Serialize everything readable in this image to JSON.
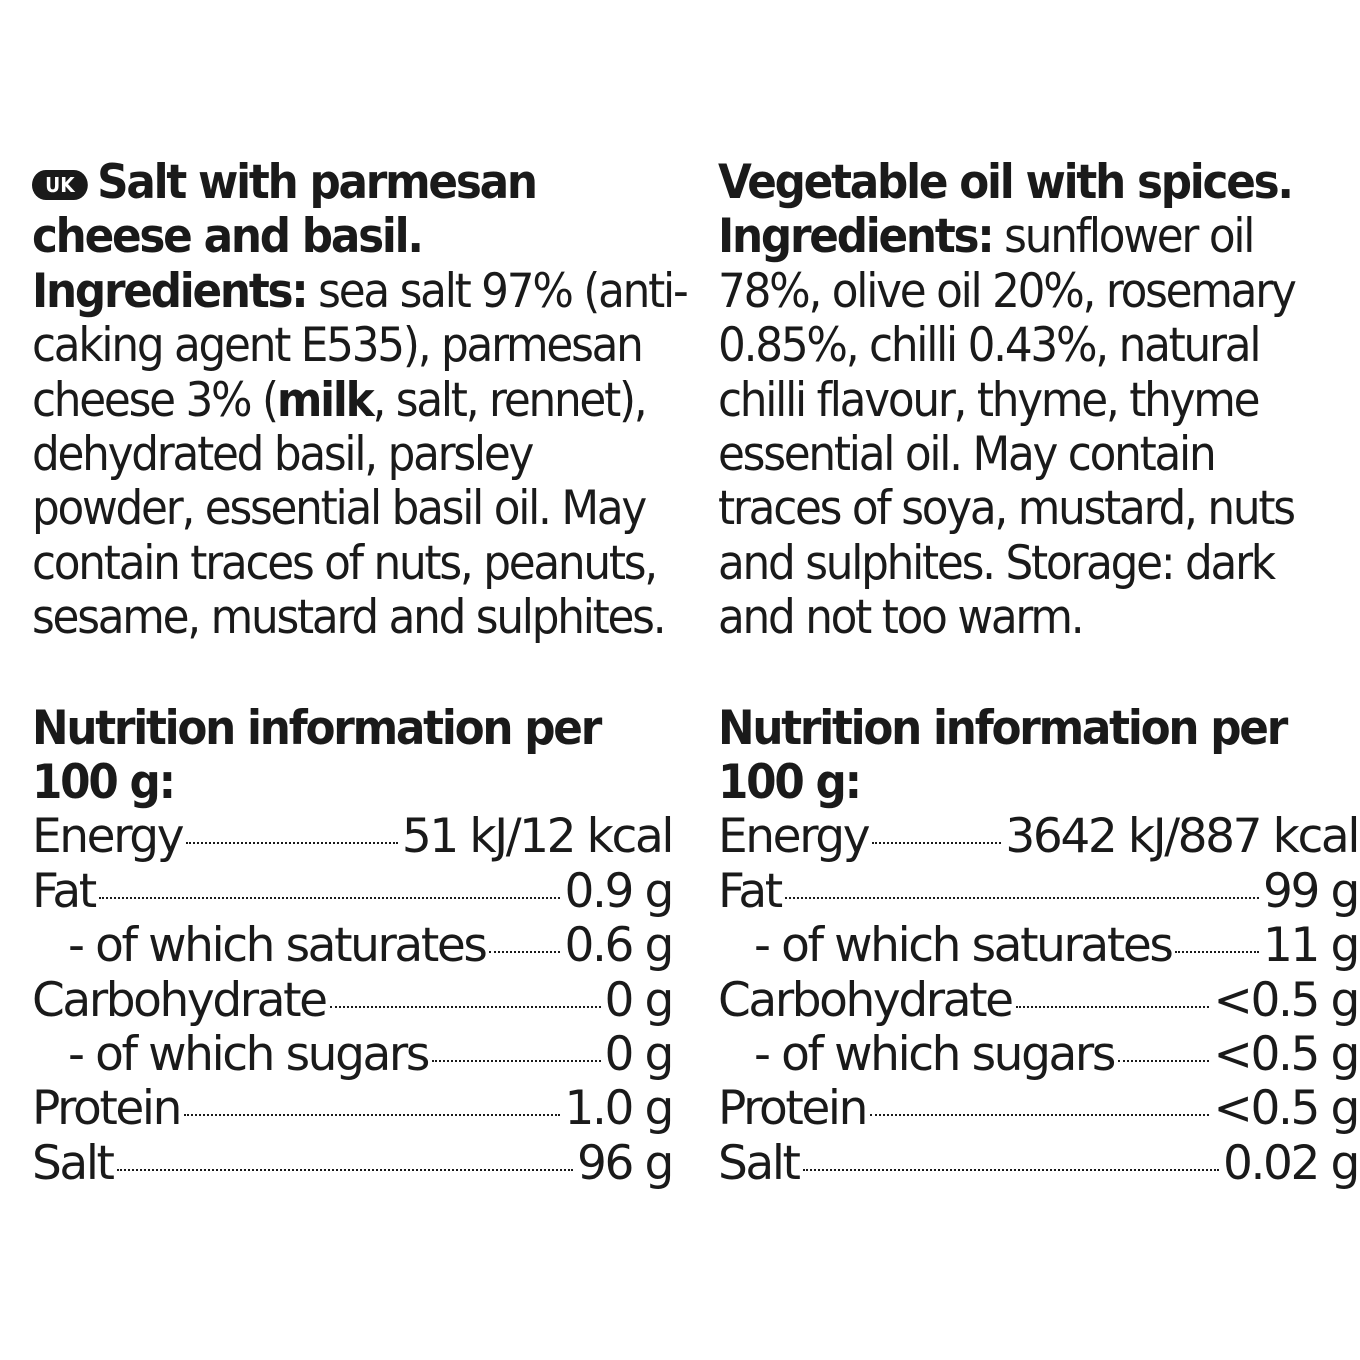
{
  "badge": "UK",
  "left": {
    "title_lines": [
      "Salt with parmesan",
      "cheese and basil."
    ],
    "ingredients_label": "Ingredients:",
    "ingredients_first": " sea salt 97% (anti-",
    "ingredients_lines": [
      "caking agent E535), parmesan"
    ],
    "cheese_line_pre": "cheese 3% (",
    "cheese_line_bold": "milk",
    "cheese_line_post": ", salt, rennet),",
    "ingredients_rest": [
      "dehydrated basil, parsley",
      "powder, essential basil oil. May",
      "contain traces of nuts, peanuts,",
      "sesame, mustard and sulphites."
    ],
    "nutrition_title_lines": [
      "Nutrition information per",
      "100 g:"
    ],
    "nutrition": [
      {
        "name": "Energy",
        "value": "51 kJ/12 kcal"
      },
      {
        "name": "Fat",
        "value": "0.9 g"
      },
      {
        "name": "- of which saturates",
        "value": "0.6 g"
      },
      {
        "name": "Carbohydrate",
        "value": "0 g"
      },
      {
        "name": "- of which sugars",
        "value": "0 g"
      },
      {
        "name": "Protein",
        "value": "1.0 g"
      },
      {
        "name": "Salt",
        "value": "96 g"
      }
    ]
  },
  "right": {
    "title_lines": [
      "Vegetable oil with spices."
    ],
    "ingredients_label": "Ingredients:",
    "ingredients_first": " sunflower oil",
    "ingredients_rest": [
      "78%, olive oil 20%, rosemary",
      "0.85%, chilli 0.43%, natural",
      "chilli flavour, thyme, thyme",
      "essential oil. May contain",
      "traces of soya, mustard, nuts",
      "and sulphites. Storage: dark",
      "and not too warm."
    ],
    "nutrition_title_lines": [
      "Nutrition information per",
      "100 g:"
    ],
    "nutrition": [
      {
        "name": "Energy",
        "value": "3642 kJ/887 kcal"
      },
      {
        "name": "Fat",
        "value": "99 g"
      },
      {
        "name": "- of which saturates",
        "value": "11 g"
      },
      {
        "name": "Carbohydrate",
        "value": "<0.5 g"
      },
      {
        "name": "- of which sugars",
        "value": "<0.5 g"
      },
      {
        "name": "Protein",
        "value": "<0.5 g"
      },
      {
        "name": "Salt",
        "value": "0.02 g"
      }
    ]
  }
}
